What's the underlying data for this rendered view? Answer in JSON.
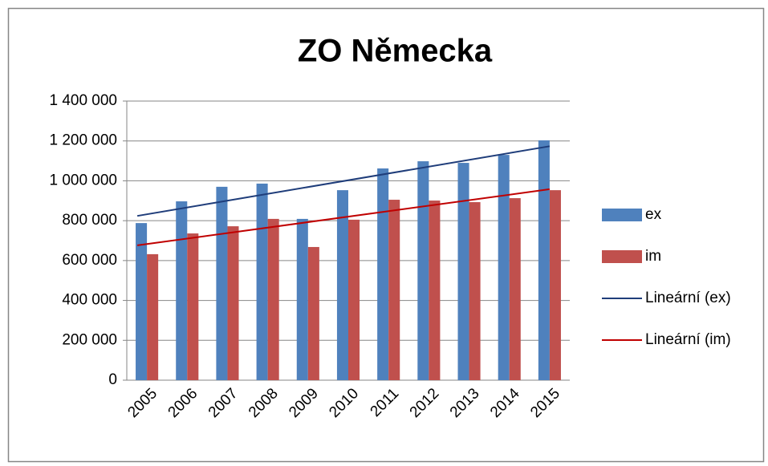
{
  "chart_data": {
    "type": "bar",
    "title": "ZO Německa",
    "categories": [
      "2005",
      "2006",
      "2007",
      "2008",
      "2009",
      "2010",
      "2011",
      "2012",
      "2013",
      "2014",
      "2015"
    ],
    "series": [
      {
        "name": "ex",
        "color": "#4f81bd",
        "values": [
          788000,
          897000,
          970000,
          986000,
          809000,
          953000,
          1062000,
          1098000,
          1090000,
          1130000,
          1203000
        ],
        "trendline": {
          "name": "Lineární (ex)",
          "color": "#1f3d7a"
        }
      },
      {
        "name": "im",
        "color": "#c0504d",
        "values": [
          632000,
          736000,
          772000,
          809000,
          668000,
          805000,
          905000,
          901000,
          893000,
          913000,
          953000
        ],
        "trendline": {
          "name": "Lineární (im)",
          "color": "#c00000"
        }
      }
    ],
    "ylim": [
      0,
      1400000
    ],
    "yticks": [
      0,
      {
        "value": 200000,
        "label": "200 000"
      },
      {
        "value": 400000,
        "label": "400 000"
      },
      {
        "value": 600000,
        "label": "600 000"
      },
      {
        "value": 800000,
        "label": "800 000"
      },
      {
        "value": 1000000,
        "label": "1 000 000"
      },
      {
        "value": 1200000,
        "label": "1 200 000"
      },
      {
        "value": 1400000,
        "label": "1 400 000"
      }
    ],
    "grid": true,
    "legend": "right"
  }
}
